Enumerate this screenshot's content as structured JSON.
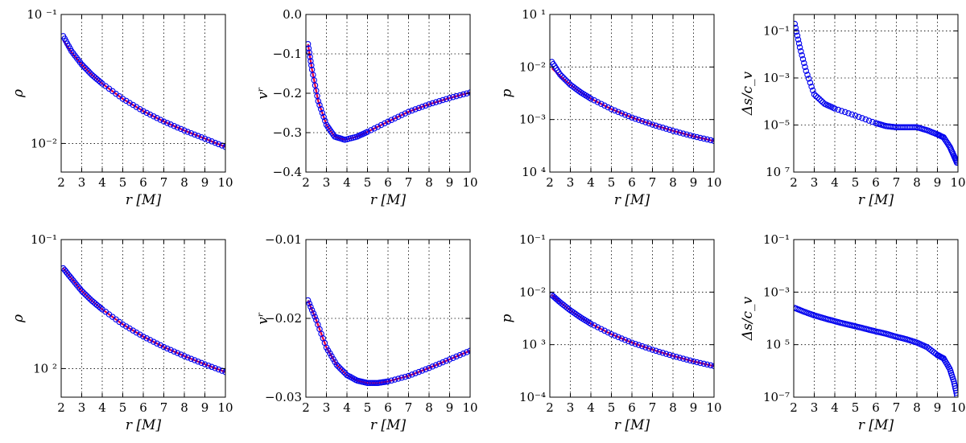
{
  "colors": {
    "curve": "#e8003c",
    "markers": "#0000ee",
    "grid": "#000000",
    "frame": "#000000"
  },
  "chart_data": [
    {
      "id": "rho_top",
      "type": "line",
      "row": 0,
      "col": 0,
      "ylabel": "ρ",
      "xlabel": "r [M]",
      "xlim": [
        2,
        10
      ],
      "ylim": [
        0.006,
        0.1
      ],
      "yscale": "log",
      "xticks": [
        2,
        3,
        4,
        5,
        6,
        7,
        8,
        9,
        10
      ],
      "xtick_labels": [
        "2",
        "3",
        "4",
        "5",
        "6",
        "7",
        "8",
        "9",
        "10"
      ],
      "yticks": [
        0.01,
        0.1
      ],
      "ytick_labels": [
        "10⁻²",
        "10 ⁻¹"
      ],
      "series": [
        {
          "kind": "line",
          "x": [
            2.1,
            2.5,
            3,
            3.5,
            4,
            5,
            6,
            7,
            8,
            9,
            10
          ],
          "y": [
            0.063,
            0.051,
            0.041,
            0.034,
            0.0291,
            0.0222,
            0.0178,
            0.0148,
            0.0126,
            0.0109,
            0.0094
          ]
        },
        {
          "kind": "markers",
          "x": [
            2.1,
            2.5,
            3,
            3.5,
            4,
            5,
            6,
            7,
            8,
            9,
            10
          ],
          "y": [
            0.068,
            0.052,
            0.041,
            0.034,
            0.0291,
            0.0222,
            0.0178,
            0.0148,
            0.0126,
            0.0109,
            0.0094
          ]
        }
      ]
    },
    {
      "id": "vr_top",
      "type": "line",
      "row": 0,
      "col": 1,
      "ylabel": "vʳ",
      "xlabel": "r [M]",
      "xlim": [
        2,
        10
      ],
      "ylim": [
        -0.4,
        0.0
      ],
      "yscale": "linear",
      "xticks": [
        2,
        3,
        4,
        5,
        6,
        7,
        8,
        9,
        10
      ],
      "xtick_labels": [
        "2",
        "3",
        "4",
        "5",
        "6",
        "7",
        "8",
        "9",
        "10"
      ],
      "yticks": [
        -0.4,
        -0.3,
        -0.2,
        -0.1,
        0.0
      ],
      "ytick_labels": [
        "−0.4",
        "−0.3",
        "−0.2",
        "−0.1",
        "0.0"
      ],
      "series": [
        {
          "kind": "line",
          "x": [
            2.1,
            2.3,
            2.6,
            3,
            3.4,
            3.9,
            4.5,
            5,
            6,
            7,
            8,
            9,
            10
          ],
          "y": [
            -0.075,
            -0.14,
            -0.22,
            -0.28,
            -0.31,
            -0.318,
            -0.31,
            -0.298,
            -0.272,
            -0.247,
            -0.228,
            -0.212,
            -0.198
          ]
        },
        {
          "kind": "markers",
          "x": [
            2.1,
            2.3,
            2.6,
            3,
            3.4,
            3.9,
            4.5,
            5,
            6,
            7,
            8,
            9,
            10
          ],
          "y": [
            -0.075,
            -0.14,
            -0.22,
            -0.28,
            -0.31,
            -0.318,
            -0.31,
            -0.298,
            -0.272,
            -0.247,
            -0.228,
            -0.212,
            -0.198
          ]
        }
      ]
    },
    {
      "id": "p_top",
      "type": "line",
      "row": 0,
      "col": 2,
      "ylabel": "p",
      "xlabel": "r [M]",
      "xlim": [
        2,
        10
      ],
      "ylim": [
        0.0001,
        0.1
      ],
      "yscale": "log",
      "xticks": [
        2,
        3,
        4,
        5,
        6,
        7,
        8,
        9,
        10
      ],
      "xtick_labels": [
        "2",
        "3",
        "4",
        "5",
        "6",
        "7",
        "8",
        "9",
        "10"
      ],
      "yticks": [
        0.0001,
        0.001,
        0.01,
        0.1
      ],
      "ytick_labels": [
        "10 ⁴",
        "10⁻³",
        "10⁻²",
        "10 ¹"
      ],
      "series": [
        {
          "kind": "line",
          "x": [
            2.1,
            2.5,
            3,
            3.5,
            4,
            5,
            6,
            7,
            8,
            9,
            10
          ],
          "y": [
            0.0095,
            0.0068,
            0.0046,
            0.0033,
            0.0025,
            0.00158,
            0.00109,
            0.0008,
            0.00061,
            0.00048,
            0.00039
          ]
        },
        {
          "kind": "markers",
          "x": [
            2.1,
            2.5,
            3,
            3.5,
            4,
            5,
            6,
            7,
            8,
            9,
            10
          ],
          "y": [
            0.0125,
            0.0072,
            0.0046,
            0.0033,
            0.0025,
            0.00158,
            0.00109,
            0.0008,
            0.00061,
            0.00048,
            0.00039
          ]
        }
      ]
    },
    {
      "id": "ds_top",
      "type": "scatter",
      "row": 0,
      "col": 3,
      "ylabel": "Δs/c_v",
      "xlabel": "r [M]",
      "xlim": [
        2,
        10
      ],
      "ylim": [
        1e-07,
        0.5
      ],
      "yscale": "log",
      "xticks": [
        2,
        3,
        4,
        5,
        6,
        7,
        8,
        9,
        10
      ],
      "xtick_labels": [
        "2",
        "3",
        "4",
        "5",
        "6",
        "7",
        "8",
        "9",
        "10"
      ],
      "yticks": [
        1e-07,
        1e-05,
        0.001,
        0.1
      ],
      "ytick_labels": [
        "10 ⁷",
        "10⁻⁵",
        "10⁻³",
        "10⁻¹"
      ],
      "series": [
        {
          "kind": "markers",
          "x": [
            2.05,
            2.3,
            2.6,
            3,
            3.5,
            4,
            5,
            6,
            6.5,
            7,
            7.5,
            8,
            8.5,
            9,
            9.3,
            9.6,
            9.8,
            9.95
          ],
          "y": [
            0.2,
            0.02,
            0.002,
            0.0002,
            8e-05,
            5e-05,
            2.5e-05,
            1.2e-05,
            9e-06,
            8e-06,
            8e-06,
            8e-06,
            6e-06,
            4e-06,
            3e-06,
            1.2e-06,
            5e-07,
            2.5e-07
          ]
        }
      ]
    },
    {
      "id": "rho_bottom",
      "type": "line",
      "row": 1,
      "col": 0,
      "ylabel": "ρ",
      "xlabel": "r [M]",
      "xlim": [
        2,
        10
      ],
      "ylim": [
        0.006,
        0.1
      ],
      "yscale": "log",
      "xticks": [
        2,
        3,
        4,
        5,
        6,
        7,
        8,
        9,
        10
      ],
      "xtick_labels": [
        "2",
        "3",
        "4",
        "5",
        "6",
        "7",
        "8",
        "9",
        "10"
      ],
      "yticks": [
        0.01,
        0.1
      ],
      "ytick_labels": [
        "10 ²",
        "10⁻¹"
      ],
      "series": [
        {
          "kind": "line",
          "x": [
            2.1,
            2.5,
            3,
            3.5,
            4,
            5,
            6,
            7,
            8,
            9,
            10
          ],
          "y": [
            0.06,
            0.05,
            0.04,
            0.0335,
            0.0288,
            0.022,
            0.0177,
            0.0147,
            0.0125,
            0.0108,
            0.0094
          ]
        },
        {
          "kind": "markers",
          "x": [
            2.1,
            2.5,
            3,
            3.5,
            4,
            5,
            6,
            7,
            8,
            9,
            10
          ],
          "y": [
            0.06,
            0.05,
            0.04,
            0.0335,
            0.0288,
            0.022,
            0.0177,
            0.0147,
            0.0125,
            0.0108,
            0.0094
          ]
        }
      ]
    },
    {
      "id": "vr_bottom",
      "type": "line",
      "row": 1,
      "col": 1,
      "ylabel": "vʳ",
      "xlabel": "r [M]",
      "xlim": [
        2,
        10
      ],
      "ylim": [
        -0.03,
        -0.01
      ],
      "yscale": "linear",
      "xticks": [
        2,
        3,
        4,
        5,
        6,
        7,
        8,
        9,
        10
      ],
      "xtick_labels": [
        "2",
        "3",
        "4",
        "5",
        "6",
        "7",
        "8",
        "9",
        "10"
      ],
      "yticks": [
        -0.03,
        -0.02,
        -0.01
      ],
      "ytick_labels": [
        "−0.03",
        "−0.02",
        "−0.01"
      ],
      "series": [
        {
          "kind": "line",
          "x": [
            2.1,
            2.5,
            3,
            3.5,
            4,
            4.5,
            5,
            5.5,
            6,
            7,
            8,
            9,
            10
          ],
          "y": [
            -0.0177,
            -0.0202,
            -0.0237,
            -0.0259,
            -0.0272,
            -0.0279,
            -0.0282,
            -0.0282,
            -0.028,
            -0.0273,
            -0.0263,
            -0.0252,
            -0.0241
          ]
        },
        {
          "kind": "markers",
          "x": [
            2.1,
            2.5,
            3,
            3.5,
            4,
            4.5,
            5,
            5.5,
            6,
            7,
            8,
            9,
            10
          ],
          "y": [
            -0.0177,
            -0.0202,
            -0.0237,
            -0.0259,
            -0.0272,
            -0.0279,
            -0.0282,
            -0.0282,
            -0.028,
            -0.0273,
            -0.0263,
            -0.0252,
            -0.0241
          ]
        }
      ]
    },
    {
      "id": "p_bottom",
      "type": "line",
      "row": 1,
      "col": 2,
      "ylabel": "p",
      "xlabel": "r [M]",
      "xlim": [
        2,
        10
      ],
      "ylim": [
        0.0001,
        0.1
      ],
      "yscale": "log",
      "xticks": [
        2,
        3,
        4,
        5,
        6,
        7,
        8,
        9,
        10
      ],
      "xtick_labels": [
        "2",
        "3",
        "4",
        "5",
        "6",
        "7",
        "8",
        "9",
        "10"
      ],
      "yticks": [
        0.0001,
        0.001,
        0.01,
        0.1
      ],
      "ytick_labels": [
        "10⁻⁴",
        "10 ³",
        "10⁻²",
        "10⁻¹"
      ],
      "series": [
        {
          "kind": "line",
          "x": [
            2.1,
            2.5,
            3,
            3.5,
            4,
            5,
            6,
            7,
            8,
            9,
            10
          ],
          "y": [
            0.0088,
            0.0064,
            0.0045,
            0.0033,
            0.0025,
            0.00158,
            0.00109,
            0.0008,
            0.00061,
            0.00048,
            0.00039
          ]
        },
        {
          "kind": "markers",
          "x": [
            2.1,
            2.5,
            3,
            3.5,
            4,
            5,
            6,
            7,
            8,
            9,
            10
          ],
          "y": [
            0.0088,
            0.0064,
            0.0045,
            0.0033,
            0.0025,
            0.00158,
            0.00109,
            0.0008,
            0.00061,
            0.00048,
            0.00039
          ]
        }
      ]
    },
    {
      "id": "ds_bottom",
      "type": "scatter",
      "row": 1,
      "col": 3,
      "ylabel": "Δs/c_v",
      "xlabel": "r [M]",
      "xlim": [
        2,
        10
      ],
      "ylim": [
        1e-07,
        0.1
      ],
      "yscale": "log",
      "xticks": [
        2,
        3,
        4,
        5,
        6,
        7,
        8,
        9,
        10
      ],
      "xtick_labels": [
        "2",
        "3",
        "4",
        "5",
        "6",
        "7",
        "8",
        "9",
        "10"
      ],
      "yticks": [
        1e-07,
        1e-05,
        0.001,
        0.1
      ],
      "ytick_labels": [
        "10⁻⁷",
        "10 ⁵",
        "10⁻³",
        "10⁻¹"
      ],
      "series": [
        {
          "kind": "markers",
          "x": [
            2.05,
            2.5,
            3,
            3.5,
            4,
            4.5,
            5,
            5.5,
            6,
            6.5,
            7,
            7.5,
            8,
            8.5,
            9,
            9.3,
            9.6,
            9.8,
            9.95
          ],
          "y": [
            0.00025,
            0.00018,
            0.00013,
            0.0001,
            7.8e-05,
            6.2e-05,
            5e-05,
            4e-05,
            3.2e-05,
            2.6e-05,
            2e-05,
            1.6e-05,
            1.2e-05,
            8e-06,
            4e-06,
            3e-06,
            1.2e-06,
            4e-07,
            1.2e-07
          ]
        }
      ]
    }
  ]
}
